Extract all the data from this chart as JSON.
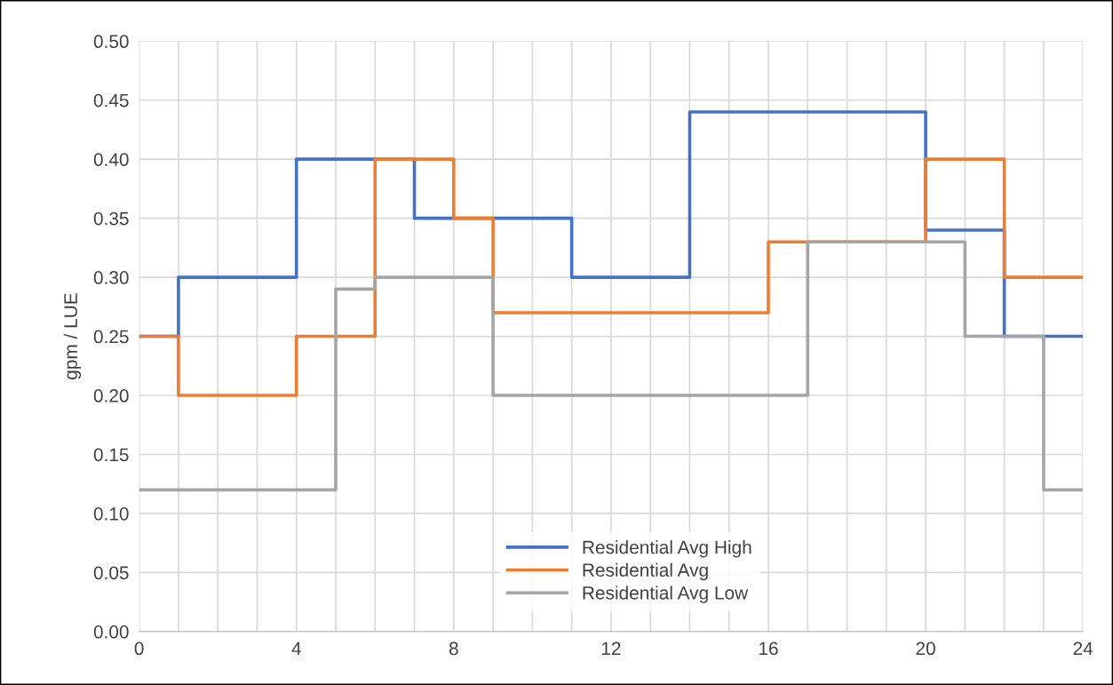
{
  "chart_data": {
    "type": "step",
    "ylabel": "gpm / LUE",
    "x": [
      0,
      1,
      2,
      3,
      4,
      5,
      6,
      7,
      8,
      9,
      10,
      11,
      12,
      13,
      14,
      15,
      16,
      17,
      18,
      19,
      20,
      21,
      22,
      23,
      24
    ],
    "series": [
      {
        "name": "Residential Avg High",
        "color": "#4472c4",
        "values": [
          0.25,
          0.3,
          0.3,
          0.3,
          0.4,
          0.4,
          0.4,
          0.35,
          0.35,
          0.35,
          0.35,
          0.3,
          0.3,
          0.3,
          0.44,
          0.44,
          0.44,
          0.44,
          0.44,
          0.44,
          0.34,
          0.34,
          0.25,
          0.25,
          0.25
        ]
      },
      {
        "name": "Residential Avg",
        "color": "#ed7d31",
        "values": [
          0.25,
          0.2,
          0.2,
          0.2,
          0.25,
          0.25,
          0.4,
          0.4,
          0.35,
          0.27,
          0.27,
          0.27,
          0.27,
          0.27,
          0.27,
          0.27,
          0.33,
          0.33,
          0.33,
          0.33,
          0.4,
          0.4,
          0.3,
          0.3,
          0.3
        ]
      },
      {
        "name": "Residential Avg Low",
        "color": "#a5a5a5",
        "values": [
          0.12,
          0.12,
          0.12,
          0.12,
          0.12,
          0.29,
          0.3,
          0.3,
          0.3,
          0.2,
          0.2,
          0.2,
          0.2,
          0.2,
          0.2,
          0.2,
          0.2,
          0.33,
          0.33,
          0.33,
          0.33,
          0.25,
          0.25,
          0.12,
          0.12
        ]
      }
    ],
    "xlim": [
      0,
      24
    ],
    "xticks": [
      0,
      {
        "value": 1,
        "label": null
      },
      {
        "value": 2,
        "label": null
      },
      {
        "value": 3,
        "label": null
      },
      4,
      {
        "value": 5,
        "label": null
      },
      {
        "value": 6,
        "label": null
      },
      {
        "value": 7,
        "label": null
      },
      8,
      {
        "value": 9,
        "label": null
      },
      {
        "value": 10,
        "label": null
      },
      {
        "value": 11,
        "label": null
      },
      12,
      {
        "value": 13,
        "label": null
      },
      {
        "value": 14,
        "label": null
      },
      {
        "value": 15,
        "label": null
      },
      16,
      {
        "value": 17,
        "label": null
      },
      {
        "value": 18,
        "label": null
      },
      {
        "value": 19,
        "label": null
      },
      20,
      {
        "value": 21,
        "label": null
      },
      {
        "value": 22,
        "label": null
      },
      {
        "value": 23,
        "label": null
      },
      24
    ],
    "ylim": [
      0,
      0.5
    ],
    "yticks": [
      {
        "value": 0,
        "label": "0.00"
      },
      {
        "value": 0.05,
        "label": "0.05"
      },
      {
        "value": 0.1,
        "label": "0.10"
      },
      {
        "value": 0.15,
        "label": "0.15"
      },
      {
        "value": 0.2,
        "label": "0.20"
      },
      {
        "value": 0.25,
        "label": "0.25"
      },
      {
        "value": 0.3,
        "label": "0.30"
      },
      {
        "value": 0.35,
        "label": "0.35"
      },
      {
        "value": 0.4,
        "label": "0.40"
      },
      {
        "value": 0.45,
        "label": "0.45"
      },
      {
        "value": 0.5,
        "label": "0.50"
      }
    ],
    "grid": true,
    "legend": "bottom",
    "marker": "none",
    "line_style": "solid"
  }
}
